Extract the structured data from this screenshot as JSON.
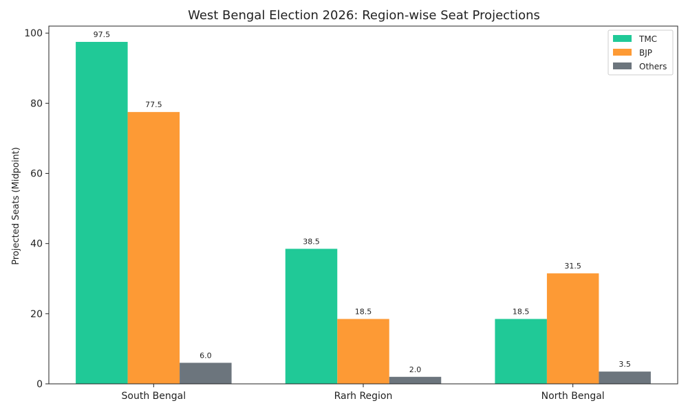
{
  "chart_data": {
    "type": "bar",
    "title": "West Bengal Election 2026: Region-wise Seat Projections",
    "xlabel": "",
    "ylabel": "Projected Seats (Midpoint)",
    "ylim": [
      0,
      102
    ],
    "yticks": [
      0,
      20,
      40,
      60,
      80,
      100
    ],
    "categories": [
      "South Bengal",
      "Rarh Region",
      "North Bengal"
    ],
    "series": [
      {
        "name": "TMC",
        "color": "#20c997",
        "values": [
          97.5,
          38.5,
          18.5
        ],
        "labels": [
          "97.5",
          "38.5",
          "18.5"
        ]
      },
      {
        "name": "BJP",
        "color": "#fd9a35",
        "values": [
          77.5,
          18.5,
          31.5
        ],
        "labels": [
          "77.5",
          "18.5",
          "31.5"
        ]
      },
      {
        "name": "Others",
        "color": "#6c757d",
        "values": [
          6.0,
          2.0,
          3.5
        ],
        "labels": [
          "6.0",
          "2.0",
          "3.5"
        ]
      }
    ],
    "legend_position": "top-right",
    "grid": false
  }
}
